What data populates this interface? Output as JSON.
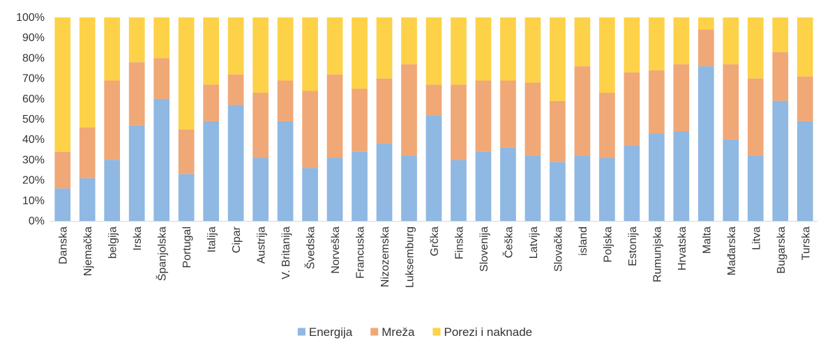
{
  "chart_data": {
    "type": "bar",
    "stacked": true,
    "percent": true,
    "title": "",
    "xlabel": "",
    "ylabel": "",
    "ylim": [
      0,
      100
    ],
    "yticks": [
      "0%",
      "10%",
      "20%",
      "30%",
      "40%",
      "50%",
      "60%",
      "70%",
      "80%",
      "90%",
      "100%"
    ],
    "grid": false,
    "legend_position": "bottom",
    "categories": [
      "Danska",
      "Njemačka",
      "belgija",
      "Irska",
      "Španjolska",
      "Portugal",
      "Italija",
      "Cipar",
      "Austrija",
      "V. Britanija",
      "Švedska",
      "Norveška",
      "Francuska",
      "Nizozemska",
      "Luksemburg",
      "Grčka",
      "Finska",
      "Slovenija",
      "Češka",
      "Latvija",
      "Slovačka",
      "island",
      "Poljska",
      "Estonija",
      "Rumunjska",
      "Hrvatska",
      "Malta",
      "Mađarska",
      "Litva",
      "Bugarska",
      "Turska"
    ],
    "series": [
      {
        "name": "Energija",
        "color": "#8fb8e3",
        "values": [
          16,
          21,
          30,
          47,
          60,
          23,
          49,
          57,
          31,
          49,
          26,
          31,
          34,
          38,
          32,
          52,
          30,
          34,
          36,
          32,
          29,
          32,
          31,
          37,
          43,
          44,
          76,
          40,
          32,
          59,
          49
        ]
      },
      {
        "name": "Mreža",
        "color": "#f0a877",
        "values": [
          18,
          25,
          39,
          31,
          20,
          22,
          18,
          15,
          32,
          20,
          38,
          41,
          31,
          32,
          45,
          15,
          37,
          35,
          33,
          36,
          30,
          44,
          32,
          36,
          31,
          33,
          18,
          37,
          38,
          24,
          22
        ]
      },
      {
        "name": "Porezi i naknade",
        "color": "#fdd248",
        "values": [
          66,
          54,
          31,
          22,
          20,
          55,
          33,
          28,
          37,
          31,
          36,
          28,
          35,
          30,
          23,
          33,
          33,
          31,
          31,
          32,
          41,
          24,
          37,
          27,
          26,
          23,
          6,
          23,
          30,
          17,
          29
        ]
      }
    ]
  }
}
